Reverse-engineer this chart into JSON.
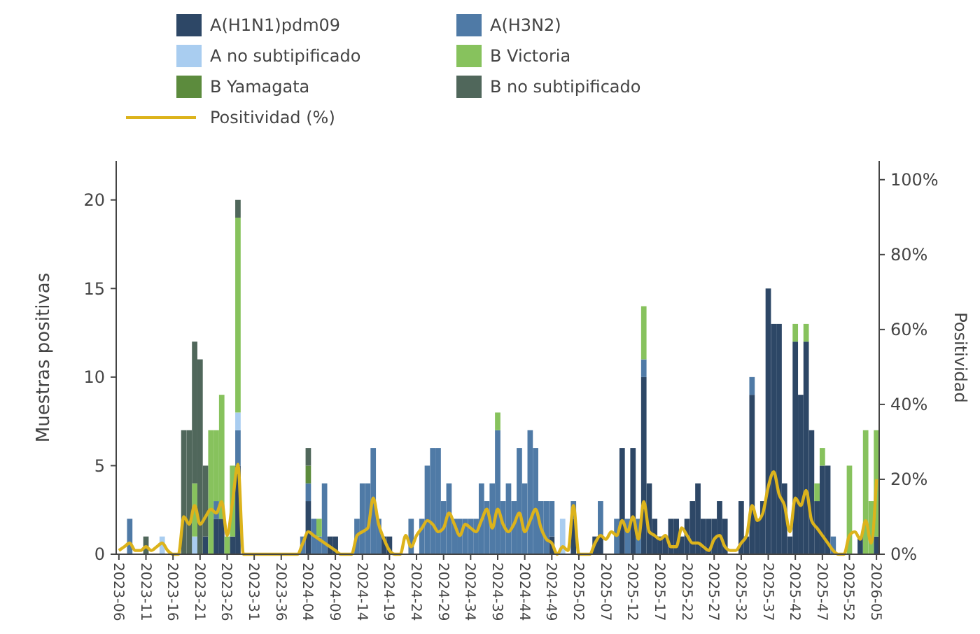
{
  "chart_data": {
    "type": "bar",
    "stacked": true,
    "ylabel": "Muestras positivas",
    "y2label": "Positividad",
    "legend": "top",
    "categories": [
      "2023-06",
      null,
      null,
      null,
      null,
      "2023-11",
      null,
      null,
      null,
      null,
      "2023-16",
      null,
      null,
      null,
      null,
      "2023-21",
      null,
      null,
      null,
      null,
      "2023-26",
      null,
      null,
      null,
      null,
      "2023-31",
      null,
      null,
      null,
      null,
      "2023-36",
      null,
      null,
      null,
      null,
      "2024-04",
      null,
      null,
      null,
      null,
      "2024-09",
      null,
      null,
      null,
      null,
      "2024-14",
      null,
      null,
      null,
      null,
      "2024-19",
      null,
      null,
      null,
      null,
      "2024-24",
      null,
      null,
      null,
      null,
      "2024-29",
      null,
      null,
      null,
      null,
      "2024-34",
      null,
      null,
      null,
      null,
      "2024-39",
      null,
      null,
      null,
      null,
      "2024-44",
      null,
      null,
      null,
      null,
      "2024-49",
      null,
      null,
      null,
      null,
      "2025-02",
      null,
      null,
      null,
      null,
      "2025-07",
      null,
      null,
      null,
      null,
      "2025-12",
      null,
      null,
      null,
      null,
      "2025-17",
      null,
      null,
      null,
      null,
      "2025-22",
      null,
      null,
      null,
      null,
      "2025-27",
      null,
      null,
      null,
      null,
      "2025-32",
      null,
      null,
      null,
      null,
      "2025-37",
      null,
      null,
      null,
      null,
      "2025-42",
      null,
      null,
      null,
      null,
      "2025-47",
      null,
      null,
      null,
      null,
      "2025-52",
      null,
      null,
      null,
      null,
      "2026-05"
    ],
    "ylim": [
      0,
      22.2
    ],
    "yticks": [
      0,
      5,
      10,
      15,
      20
    ],
    "y2lim": [
      0,
      105
    ],
    "y2ticks": [
      {
        "value": 0,
        "label": "0%"
      },
      {
        "value": 20,
        "label": "20%"
      },
      {
        "value": 40,
        "label": "40%"
      },
      {
        "value": 60,
        "label": "60%"
      },
      {
        "value": 80,
        "label": "80%"
      },
      {
        "value": 100,
        "label": "100%"
      }
    ],
    "series": [
      {
        "name": "A(H1N1)pdm09",
        "color": "#2d4766",
        "values": [
          0,
          0,
          0,
          0,
          0,
          0,
          0,
          0,
          0,
          0,
          0,
          0,
          0,
          0,
          0,
          0,
          1,
          0,
          2,
          2,
          0,
          1,
          5,
          0,
          0,
          0,
          0,
          0,
          0,
          0,
          0,
          0,
          0,
          0,
          0,
          3,
          0,
          0,
          0,
          1,
          1,
          0,
          0,
          0,
          0,
          0,
          0,
          0,
          0,
          1,
          1,
          0,
          0,
          0,
          0,
          0,
          0,
          0,
          0,
          0,
          0,
          0,
          0,
          0,
          0,
          0,
          0,
          0,
          0,
          0,
          0,
          0,
          0,
          0,
          0,
          0,
          0,
          0,
          0,
          0,
          1,
          0,
          0,
          0,
          2,
          0,
          0,
          0,
          1,
          1,
          0,
          0,
          0,
          6,
          0,
          6,
          0,
          10,
          4,
          2,
          1,
          1,
          2,
          2,
          1,
          2,
          3,
          4,
          2,
          2,
          2,
          3,
          2,
          0,
          0,
          3,
          1,
          9,
          2,
          3,
          15,
          13,
          13,
          4,
          1,
          12,
          9,
          12,
          7,
          3,
          5,
          5,
          0,
          0,
          0,
          0,
          0,
          1,
          0,
          0,
          1
        ]
      },
      {
        "name": "A(H3N2)",
        "color": "#4f7aa6",
        "values": [
          0,
          0,
          2,
          0,
          0,
          0,
          0,
          0,
          0,
          0,
          0,
          0,
          0,
          0,
          0,
          0,
          0,
          0,
          1,
          0,
          0,
          0,
          2,
          0,
          0,
          0,
          0,
          0,
          0,
          0,
          0,
          0,
          0,
          0,
          1,
          1,
          2,
          1,
          4,
          0,
          0,
          0,
          0,
          0,
          2,
          4,
          4,
          6,
          2,
          0,
          0,
          0,
          0,
          0,
          2,
          0,
          2,
          5,
          6,
          6,
          3,
          4,
          2,
          2,
          2,
          2,
          2,
          4,
          3,
          4,
          7,
          3,
          4,
          3,
          6,
          4,
          7,
          6,
          3,
          3,
          2,
          0,
          0,
          0,
          1,
          0,
          0,
          0,
          0,
          2,
          0,
          0,
          2,
          0,
          2,
          0,
          2,
          1,
          0,
          0,
          0,
          0,
          0,
          0,
          0,
          0,
          0,
          0,
          0,
          0,
          0,
          0,
          0,
          0,
          0,
          0,
          0,
          1,
          0,
          0,
          0,
          0,
          0,
          0,
          0,
          0,
          0,
          0,
          0,
          0,
          0,
          0,
          1,
          0,
          0,
          0,
          0,
          0,
          0,
          0,
          0
        ]
      },
      {
        "name": "A no subtipificado",
        "color": "#a9cdf0",
        "values": [
          0,
          0,
          0,
          0,
          0,
          0,
          0,
          0,
          1,
          0,
          0,
          0,
          0,
          0,
          1,
          0,
          0,
          0,
          0,
          0,
          0,
          0,
          1,
          0,
          0,
          0,
          0,
          0,
          0,
          0,
          0,
          0,
          0,
          0,
          0,
          0,
          0,
          0,
          0,
          0,
          0,
          0,
          0,
          0,
          0,
          0,
          0,
          0,
          0,
          0,
          0,
          0,
          0,
          0,
          0,
          0,
          0,
          0,
          0,
          0,
          0,
          0,
          0,
          0,
          0,
          0,
          0,
          0,
          0,
          0,
          0,
          0,
          0,
          0,
          0,
          0,
          0,
          0,
          0,
          0,
          0,
          0,
          2,
          0,
          0,
          0,
          0,
          0,
          0,
          0,
          0,
          0,
          0,
          0,
          0,
          0,
          0,
          0,
          0,
          0,
          0,
          0,
          0,
          0,
          0,
          0,
          0,
          0,
          0,
          0,
          0,
          0,
          0,
          0,
          0,
          0,
          0,
          0,
          0,
          0,
          0,
          0,
          0,
          0,
          0,
          0,
          0,
          0,
          0,
          0,
          0,
          0,
          0,
          0,
          0,
          0,
          0,
          0,
          0,
          0,
          0
        ]
      },
      {
        "name": "B Victoria",
        "color": "#87c25d",
        "values": [
          0,
          0,
          0,
          0,
          0,
          0,
          0,
          0,
          0,
          0,
          0,
          0,
          0,
          0,
          3,
          0,
          0,
          7,
          4,
          7,
          1,
          4,
          11,
          0,
          0,
          0,
          0,
          0,
          0,
          0,
          0,
          0,
          0,
          0,
          0,
          0,
          0,
          1,
          0,
          0,
          0,
          0,
          0,
          0,
          0,
          0,
          0,
          0,
          0,
          0,
          0,
          0,
          0,
          0,
          0,
          0,
          0,
          0,
          0,
          0,
          0,
          0,
          0,
          0,
          0,
          0,
          0,
          0,
          0,
          0,
          1,
          0,
          0,
          0,
          0,
          0,
          0,
          0,
          0,
          0,
          0,
          0,
          0,
          0,
          0,
          0,
          0,
          0,
          0,
          0,
          0,
          0,
          0,
          0,
          0,
          0,
          0,
          3,
          0,
          0,
          0,
          0,
          0,
          0,
          0,
          0,
          0,
          0,
          0,
          0,
          0,
          0,
          0,
          0,
          0,
          0,
          0,
          0,
          0,
          0,
          0,
          0,
          0,
          0,
          0,
          1,
          0,
          1,
          0,
          1,
          1,
          0,
          0,
          0,
          0,
          5,
          0,
          0,
          7,
          3,
          6
        ]
      },
      {
        "name": "B Yamagata",
        "color": "#5c8b3d",
        "values": [
          0,
          0,
          0,
          0,
          0,
          0,
          0,
          0,
          0,
          0,
          0,
          0,
          0,
          0,
          0,
          0,
          0,
          0,
          0,
          0,
          0,
          0,
          0,
          0,
          0,
          0,
          0,
          0,
          0,
          0,
          0,
          0,
          0,
          0,
          0,
          1,
          0,
          0,
          0,
          0,
          0,
          0,
          0,
          0,
          0,
          0,
          0,
          0,
          0,
          0,
          0,
          0,
          0,
          0,
          0,
          0,
          0,
          0,
          0,
          0,
          0,
          0,
          0,
          0,
          0,
          0,
          0,
          0,
          0,
          0,
          0,
          0,
          0,
          0,
          0,
          0,
          0,
          0,
          0,
          0,
          0,
          0,
          0,
          0,
          0,
          0,
          0,
          0,
          0,
          0,
          0,
          0,
          0,
          0,
          0,
          0,
          0,
          0,
          0,
          0,
          0,
          0,
          0,
          0,
          0,
          0,
          0,
          0,
          0,
          0,
          0,
          0,
          0,
          0,
          0,
          0,
          0,
          0,
          0,
          0,
          0,
          0,
          0,
          0,
          0,
          0,
          0,
          0,
          0,
          0,
          0,
          0,
          0,
          0,
          0,
          0,
          0,
          0,
          0,
          0,
          0
        ]
      },
      {
        "name": "B no subtipificado",
        "color": "#50675b",
        "values": [
          0,
          0,
          0,
          0,
          0,
          1,
          0,
          0,
          0,
          0,
          0,
          0,
          7,
          7,
          8,
          11,
          4,
          0,
          0,
          0,
          0,
          0,
          1,
          0,
          0,
          0,
          0,
          0,
          0,
          0,
          0,
          0,
          0,
          0,
          0,
          1,
          0,
          0,
          0,
          0,
          0,
          0,
          0,
          0,
          0,
          0,
          0,
          0,
          0,
          0,
          0,
          0,
          0,
          0,
          0,
          0,
          0,
          0,
          0,
          0,
          0,
          0,
          0,
          0,
          0,
          0,
          0,
          0,
          0,
          0,
          0,
          0,
          0,
          0,
          0,
          0,
          0,
          0,
          0,
          0,
          0,
          0,
          0,
          0,
          0,
          0,
          0,
          0,
          0,
          0,
          0,
          0,
          0,
          0,
          0,
          0,
          0,
          0,
          0,
          0,
          0,
          0,
          0,
          0,
          0,
          0,
          0,
          0,
          0,
          0,
          0,
          0,
          0,
          0,
          0,
          0,
          0,
          0,
          0,
          0,
          0,
          0,
          0,
          0,
          0,
          0,
          0,
          0,
          0,
          0,
          0,
          0,
          0,
          0,
          0,
          0,
          0,
          0,
          0,
          0,
          0
        ]
      },
      {
        "name": "Positividad (%)",
        "type": "line",
        "axis": "y2",
        "color": "#dcb31c",
        "values": [
          1,
          2,
          3,
          1,
          1,
          2,
          1,
          2,
          3,
          1,
          0,
          0,
          10,
          8,
          13,
          8,
          10,
          12,
          11,
          14,
          5,
          14,
          24,
          0,
          0,
          0,
          0,
          0,
          0,
          0,
          0,
          0,
          0,
          0,
          3,
          6,
          5,
          4,
          3,
          2,
          1,
          0,
          0,
          0,
          5,
          6,
          7,
          15,
          8,
          4,
          1,
          0,
          0,
          5,
          2,
          5,
          7,
          9,
          8,
          6,
          7,
          11,
          8,
          5,
          8,
          7,
          6,
          9,
          12,
          7,
          12,
          8,
          6,
          8,
          11,
          6,
          9,
          12,
          7,
          4,
          3,
          0,
          2,
          1,
          13,
          0,
          0,
          0,
          3,
          5,
          4,
          6,
          5,
          9,
          6,
          10,
          4,
          14,
          6,
          5,
          4,
          5,
          2,
          2,
          7,
          5,
          3,
          3,
          2,
          1,
          4,
          5,
          2,
          1,
          1,
          3,
          5,
          13,
          9,
          11,
          18,
          22,
          16,
          13,
          6,
          15,
          13,
          17,
          9,
          7,
          5,
          3,
          1,
          0,
          0,
          5,
          6,
          4,
          9,
          3,
          20
        ]
      }
    ]
  }
}
